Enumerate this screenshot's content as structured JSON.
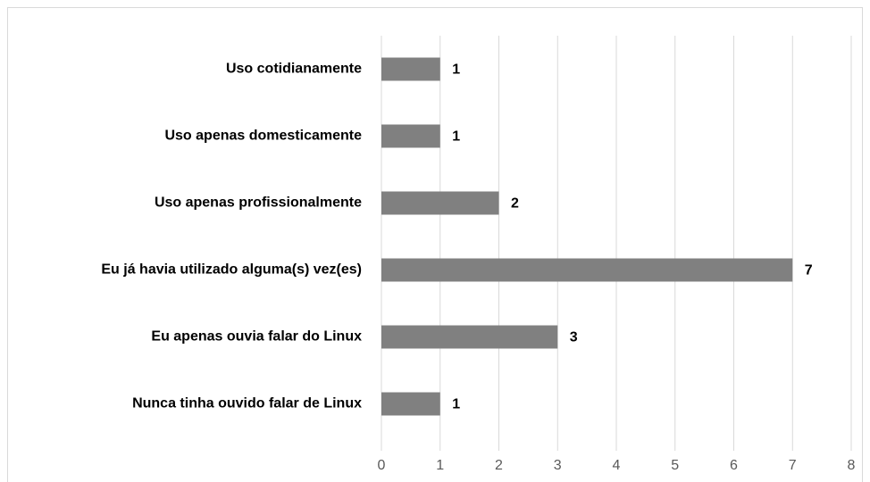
{
  "chart_data": {
    "type": "bar",
    "orientation": "horizontal",
    "categories": [
      "Uso cotidianamente",
      "Uso apenas domesticamente",
      "Uso apenas profissionalmente",
      "Eu já havia utilizado alguma(s) vez(es)",
      "Eu apenas ouvia falar do Linux",
      "Nunca tinha ouvido falar de Linux"
    ],
    "values": [
      1,
      1,
      2,
      7,
      3,
      1
    ],
    "color": "#808080",
    "xlim": [
      0,
      8
    ],
    "xticks": [
      0,
      1,
      2,
      3,
      4,
      5,
      6,
      7,
      8
    ],
    "grid": true
  }
}
